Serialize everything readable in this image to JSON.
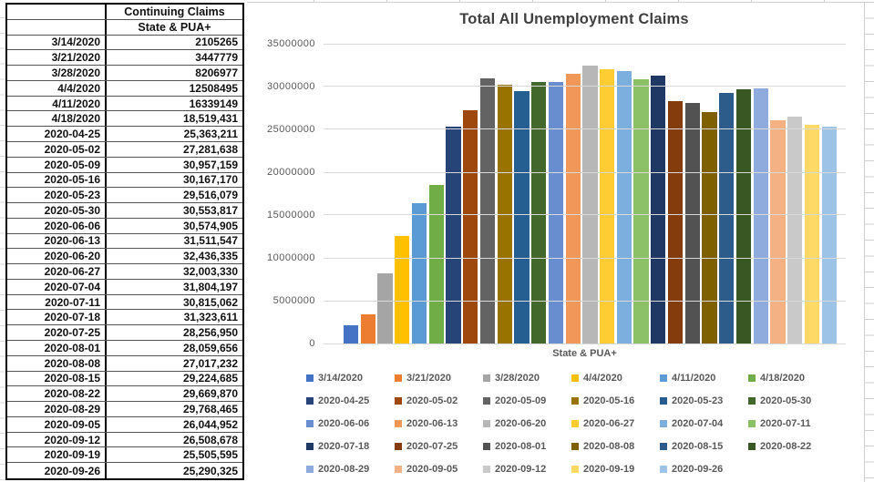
{
  "table": {
    "header": {
      "title": "Continuing Claims",
      "subtitle": "State & PUA+"
    },
    "rows": [
      {
        "date": "3/14/2020",
        "value": "2105265"
      },
      {
        "date": "3/21/2020",
        "value": "3447779"
      },
      {
        "date": "3/28/2020",
        "value": "8206977"
      },
      {
        "date": "4/4/2020",
        "value": "12508495"
      },
      {
        "date": "4/11/2020",
        "value": "16339149"
      },
      {
        "date": "4/18/2020",
        "value": "18,519,431"
      },
      {
        "date": "2020-04-25",
        "value": "25,363,211"
      },
      {
        "date": "2020-05-02",
        "value": "27,281,638"
      },
      {
        "date": "2020-05-09",
        "value": "30,957,159"
      },
      {
        "date": "2020-05-16",
        "value": "30,167,170"
      },
      {
        "date": "2020-05-23",
        "value": "29,516,079"
      },
      {
        "date": "2020-05-30",
        "value": "30,553,817"
      },
      {
        "date": "2020-06-06",
        "value": "30,574,905"
      },
      {
        "date": "2020-06-13",
        "value": "31,511,547"
      },
      {
        "date": "2020-06-20",
        "value": "32,436,335"
      },
      {
        "date": "2020-06-27",
        "value": "32,003,330"
      },
      {
        "date": "2020-07-04",
        "value": "31,804,197"
      },
      {
        "date": "2020-07-11",
        "value": "30,815,062"
      },
      {
        "date": "2020-07-18",
        "value": "31,323,611"
      },
      {
        "date": "2020-07-25",
        "value": "28,256,950"
      },
      {
        "date": "2020-08-01",
        "value": "28,059,656"
      },
      {
        "date": "2020-08-08",
        "value": "27,017,232"
      },
      {
        "date": "2020-08-15",
        "value": "29,224,685"
      },
      {
        "date": "2020-08-22",
        "value": "29,669,870"
      },
      {
        "date": "2020-08-29",
        "value": "29,768,465"
      },
      {
        "date": "2020-09-05",
        "value": "26,044,952"
      },
      {
        "date": "2020-09-12",
        "value": "26,508,678"
      },
      {
        "date": "2020-09-19",
        "value": "25,505,595"
      },
      {
        "date": "2020-09-26",
        "value": "25,290,325"
      }
    ]
  },
  "chart_data": {
    "type": "bar",
    "title": "Total All Unemployment Claims",
    "xlabel": "State & PUA+",
    "ylabel": "",
    "ylim": [
      0,
      35000000
    ],
    "yticks": [
      0,
      5000000,
      10000000,
      15000000,
      20000000,
      25000000,
      30000000,
      35000000
    ],
    "grid": true,
    "legend_position": "bottom",
    "categories": [
      "State & PUA+"
    ],
    "series": [
      {
        "name": "3/14/2020",
        "value": 2105265,
        "color": "#4472C4"
      },
      {
        "name": "3/21/2020",
        "value": 3447779,
        "color": "#ED7D31"
      },
      {
        "name": "3/28/2020",
        "value": 8206977,
        "color": "#A5A5A5"
      },
      {
        "name": "4/4/2020",
        "value": 12508495,
        "color": "#FFC000"
      },
      {
        "name": "4/11/2020",
        "value": 16339149,
        "color": "#5B9BD5"
      },
      {
        "name": "4/18/2020",
        "value": 18519431,
        "color": "#70AD47"
      },
      {
        "name": "2020-04-25",
        "value": 25363211,
        "color": "#264478"
      },
      {
        "name": "2020-05-02",
        "value": 27281638,
        "color": "#9E480E"
      },
      {
        "name": "2020-05-09",
        "value": 30957159,
        "color": "#636363"
      },
      {
        "name": "2020-05-16",
        "value": 30167170,
        "color": "#997300"
      },
      {
        "name": "2020-05-23",
        "value": 29516079,
        "color": "#255E91"
      },
      {
        "name": "2020-05-30",
        "value": 30553817,
        "color": "#43682B"
      },
      {
        "name": "2020-06-06",
        "value": 30574905,
        "color": "#698ED0"
      },
      {
        "name": "2020-06-13",
        "value": 31511547,
        "color": "#F1975A"
      },
      {
        "name": "2020-06-20",
        "value": 32436335,
        "color": "#B7B7B7"
      },
      {
        "name": "2020-06-27",
        "value": 32003330,
        "color": "#FFCD33"
      },
      {
        "name": "2020-07-04",
        "value": 31804197,
        "color": "#7CAFDD"
      },
      {
        "name": "2020-07-11",
        "value": 30815062,
        "color": "#8CC168"
      },
      {
        "name": "2020-07-18",
        "value": 31323611,
        "color": "#203864"
      },
      {
        "name": "2020-07-25",
        "value": 28256950,
        "color": "#843C0C"
      },
      {
        "name": "2020-08-01",
        "value": 28059656,
        "color": "#525252"
      },
      {
        "name": "2020-08-08",
        "value": 27017232,
        "color": "#7F6000"
      },
      {
        "name": "2020-08-15",
        "value": 29224685,
        "color": "#2E5C8A"
      },
      {
        "name": "2020-08-22",
        "value": 29669870,
        "color": "#385723"
      },
      {
        "name": "2020-08-29",
        "value": 29768465,
        "color": "#8FAADC"
      },
      {
        "name": "2020-09-05",
        "value": 26044952,
        "color": "#F4B183"
      },
      {
        "name": "2020-09-12",
        "value": 26508678,
        "color": "#C9C9C9"
      },
      {
        "name": "2020-09-19",
        "value": 25505595,
        "color": "#FFD966"
      },
      {
        "name": "2020-09-26",
        "value": 25290325,
        "color": "#9DC3E6"
      }
    ]
  }
}
